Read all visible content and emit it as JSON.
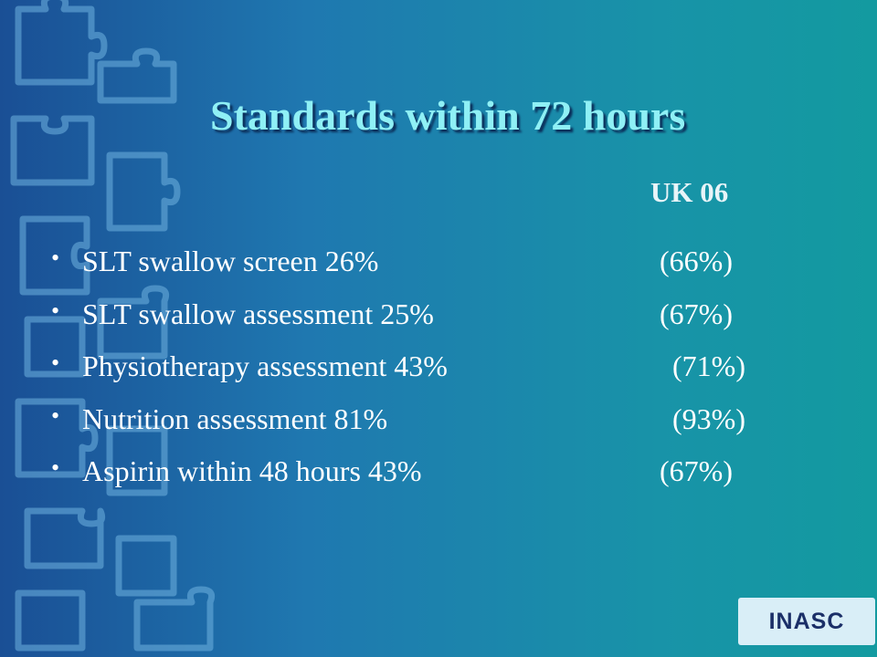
{
  "slide": {
    "title": "Standards within 72 hours",
    "subtitle": "UK 06",
    "items": [
      {
        "text": "SLT swallow screen 26%",
        "uk": "(66%)"
      },
      {
        "text": "SLT swallow assessment 25%",
        "uk": "(67%)"
      },
      {
        "text": "Physiotherapy assessment 43%",
        "uk": "(71%)"
      },
      {
        "text": "Nutrition assessment 81%",
        "uk": "(93%)"
      },
      {
        "text": "Aspirin within 48 hours 43%",
        "uk": "(67%)"
      }
    ],
    "badge": "INASC"
  }
}
